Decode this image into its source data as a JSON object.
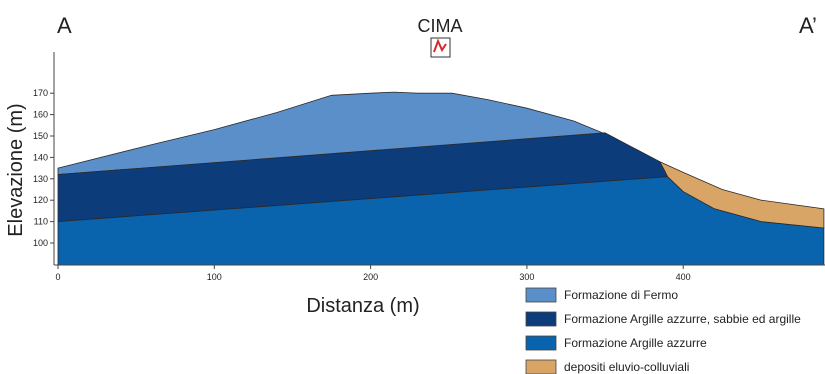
{
  "profile": {
    "start_label": "A",
    "end_label": "A’",
    "summit_label": "CIMA"
  },
  "axes": {
    "xlabel": "Distanza (m)",
    "ylabel": "Elevazione (m)",
    "xlim": [
      0,
      490
    ],
    "ylim": [
      92,
      175
    ],
    "x_ticks": [
      "0",
      "100",
      "200",
      "300",
      "400"
    ],
    "y_ticks": [
      "100",
      "110",
      "120",
      "130",
      "140",
      "150",
      "160",
      "170"
    ]
  },
  "units": {
    "fermo": {
      "label": "Formazione di Fermo",
      "color": "#5b8fca"
    },
    "argille_sabbie": {
      "label": "Formazione Argille azzurre, sabbie ed argille",
      "color": "#0d3c7a"
    },
    "argille": {
      "label": "Formazione Argille azzurre",
      "color": "#0a63ad"
    },
    "eluvio": {
      "label": "depositi eluvio-colluviali",
      "color": "#d9a566"
    }
  },
  "legend": [
    "fermo",
    "argille_sabbie",
    "argille",
    "eluvio"
  ],
  "section_data": {
    "surface": [
      [
        0,
        135
      ],
      [
        60,
        146
      ],
      [
        100,
        153
      ],
      [
        140,
        161
      ],
      [
        175,
        169
      ],
      [
        200,
        170
      ],
      [
        215,
        170.5
      ],
      [
        230,
        170
      ],
      [
        252,
        170
      ],
      [
        275,
        167
      ],
      [
        300,
        163
      ],
      [
        330,
        157
      ],
      [
        350,
        151
      ],
      [
        385,
        138
      ],
      [
        400,
        133
      ],
      [
        425,
        125
      ],
      [
        450,
        120
      ],
      [
        490,
        116
      ]
    ],
    "contact_fermo_base": [
      [
        0,
        132
      ],
      [
        350,
        151.5
      ]
    ],
    "contact_argille_top": [
      [
        0,
        110
      ],
      [
        390,
        131
      ]
    ],
    "eluvio_base": [
      [
        385,
        138
      ],
      [
        388,
        134
      ],
      [
        390,
        131
      ],
      [
        400,
        124
      ],
      [
        420,
        116
      ],
      [
        450,
        110
      ],
      [
        490,
        107
      ]
    ]
  }
}
